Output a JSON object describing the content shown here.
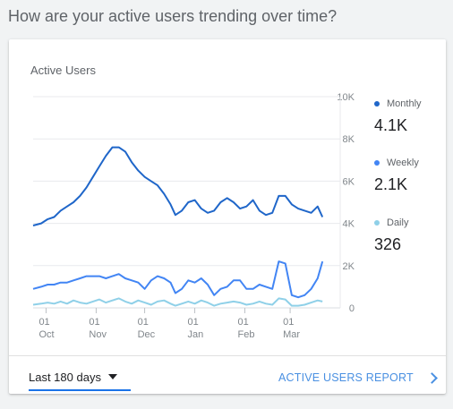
{
  "page": {
    "heading": "How are your active users trending over time?"
  },
  "card": {
    "title": "Active Users"
  },
  "legend": [
    {
      "label": "Monthly",
      "value": "4.1K",
      "color": "#1f66c9"
    },
    {
      "label": "Weekly",
      "value": "2.1K",
      "color": "#4285f4"
    },
    {
      "label": "Daily",
      "value": "326",
      "color": "#8fd0e8"
    }
  ],
  "footer": {
    "range_label": "Last 180 days",
    "report_link": "ACTIVE USERS REPORT"
  },
  "icons": {
    "range_caret": "caret-down-icon",
    "report_chevron": "chevron-right-icon"
  },
  "chart_data": {
    "type": "line",
    "ylim": [
      0,
      10000
    ],
    "yticks": [
      0,
      2000,
      4000,
      6000,
      8000,
      10000
    ],
    "ytick_labels": [
      "0",
      "2K",
      "4K",
      "6K",
      "8K",
      "10K"
    ],
    "x_ticks": [
      {
        "day": 8,
        "top": "01",
        "bottom": "Oct"
      },
      {
        "day": 39,
        "top": "01",
        "bottom": "Nov"
      },
      {
        "day": 69,
        "top": "01",
        "bottom": "Dec"
      },
      {
        "day": 100,
        "top": "01",
        "bottom": "Jan"
      },
      {
        "day": 131,
        "top": "01",
        "bottom": "Feb"
      },
      {
        "day": 159,
        "top": "01",
        "bottom": "Mar"
      }
    ],
    "series": [
      {
        "name": "Monthly",
        "color": "#1f66c9",
        "x": [
          0,
          5,
          9,
          13,
          17,
          21,
          25,
          29,
          33,
          37,
          41,
          45,
          49,
          53,
          57,
          61,
          65,
          69,
          73,
          77,
          81,
          85,
          88,
          92,
          96,
          100,
          104,
          108,
          112,
          116,
          120,
          124,
          128,
          132,
          136,
          140,
          144,
          148,
          152,
          156,
          160,
          164,
          168,
          172,
          176,
          179
        ],
        "values": [
          3900,
          4000,
          4200,
          4300,
          4600,
          4800,
          5000,
          5300,
          5700,
          6200,
          6700,
          7200,
          7600,
          7600,
          7400,
          6900,
          6500,
          6200,
          6000,
          5800,
          5400,
          4900,
          4400,
          4600,
          5000,
          5100,
          4700,
          4500,
          4600,
          5000,
          5200,
          5000,
          4700,
          4800,
          5100,
          4600,
          4400,
          4500,
          5300,
          5300,
          4900,
          4700,
          4600,
          4500,
          4800,
          4300
        ]
      },
      {
        "name": "Weekly",
        "color": "#4285f4",
        "x": [
          0,
          5,
          9,
          13,
          17,
          21,
          25,
          29,
          33,
          37,
          41,
          45,
          49,
          53,
          57,
          61,
          65,
          69,
          73,
          77,
          81,
          85,
          88,
          92,
          96,
          100,
          104,
          108,
          112,
          116,
          120,
          124,
          128,
          132,
          136,
          140,
          144,
          148,
          152,
          156,
          160,
          164,
          168,
          172,
          176,
          179
        ],
        "values": [
          900,
          1000,
          1100,
          1100,
          1200,
          1200,
          1300,
          1400,
          1500,
          1500,
          1500,
          1400,
          1500,
          1600,
          1400,
          1300,
          1200,
          900,
          1300,
          1500,
          1400,
          1200,
          700,
          900,
          1300,
          1200,
          1400,
          1100,
          600,
          900,
          1000,
          1300,
          1300,
          900,
          900,
          1100,
          1000,
          900,
          2200,
          2100,
          600,
          500,
          600,
          900,
          1400,
          2200
        ]
      },
      {
        "name": "Daily",
        "color": "#8fd0e8",
        "x": [
          0,
          5,
          9,
          13,
          17,
          21,
          25,
          29,
          33,
          37,
          41,
          45,
          49,
          53,
          57,
          61,
          65,
          69,
          73,
          77,
          81,
          85,
          88,
          92,
          96,
          100,
          104,
          108,
          112,
          116,
          120,
          124,
          128,
          132,
          136,
          140,
          144,
          148,
          152,
          156,
          160,
          164,
          168,
          172,
          176,
          179
        ],
        "values": [
          150,
          200,
          250,
          200,
          300,
          200,
          350,
          250,
          200,
          300,
          400,
          250,
          350,
          450,
          300,
          200,
          350,
          250,
          150,
          300,
          350,
          200,
          100,
          200,
          300,
          200,
          350,
          250,
          100,
          200,
          250,
          300,
          250,
          150,
          200,
          300,
          200,
          150,
          450,
          400,
          100,
          100,
          150,
          250,
          350,
          300
        ]
      }
    ]
  }
}
